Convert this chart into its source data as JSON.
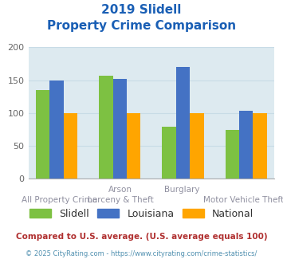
{
  "title_line1": "2019 Slidell",
  "title_line2": "Property Crime Comparison",
  "groups": [
    "Slidell",
    "Louisiana",
    "National"
  ],
  "values": {
    "Slidell": [
      135,
      157,
      79,
      74
    ],
    "Louisiana": [
      150,
      152,
      170,
      104
    ],
    "National": [
      100,
      100,
      100,
      100
    ]
  },
  "bar_colors": {
    "Slidell": "#7dc142",
    "Louisiana": "#4472c4",
    "National": "#ffa500"
  },
  "top_labels": [
    "",
    "Arson",
    "Burglary",
    ""
  ],
  "bottom_labels": [
    "All Property Crime",
    "Larceny & Theft",
    "",
    "Motor Vehicle Theft"
  ],
  "ylim": [
    0,
    200
  ],
  "yticks": [
    0,
    50,
    100,
    150,
    200
  ],
  "grid_color": "#c8dce6",
  "bg_color": "#ddeaf0",
  "title_color": "#1a5fb5",
  "label_color": "#9090a0",
  "legend_text_color": "#333333",
  "footnote1": "Compared to U.S. average. (U.S. average equals 100)",
  "footnote2": "© 2025 CityRating.com - https://www.cityrating.com/crime-statistics/",
  "footnote1_color": "#b03030",
  "footnote2_color": "#5090b0"
}
